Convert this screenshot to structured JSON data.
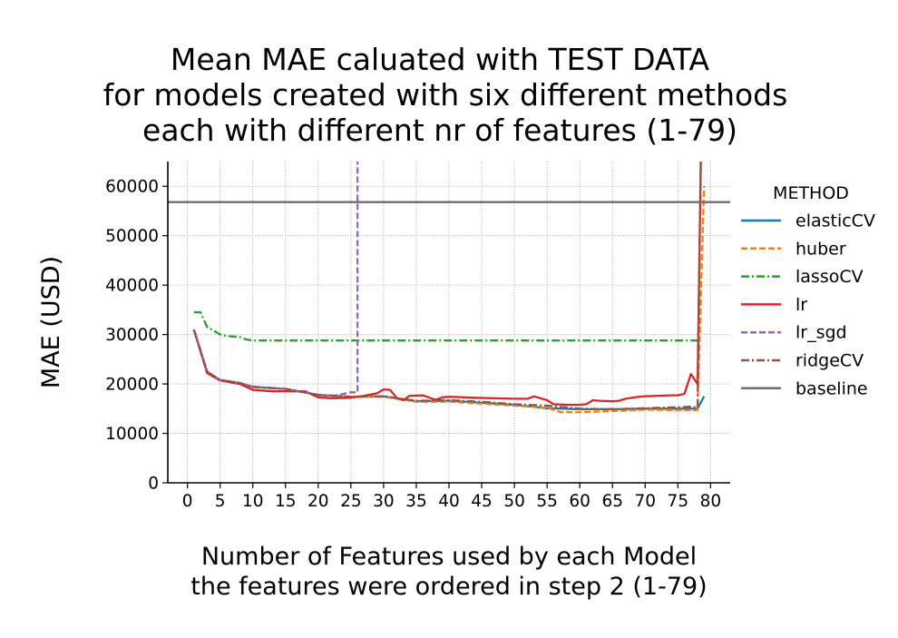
{
  "chart_data": {
    "type": "line",
    "title": [
      "Mean MAE caluated with TEST DATA",
      "for models created with six different methods",
      "each with different nr of features (1-79)"
    ],
    "xlabel": [
      "Number of Features used by each Model",
      "the features were ordered in step 2 (1-79)"
    ],
    "ylabel": "MAE (USD)",
    "xlim": [
      -3,
      83
    ],
    "ylim": [
      0,
      65000
    ],
    "xticks": [
      0,
      5,
      10,
      15,
      20,
      25,
      30,
      35,
      40,
      45,
      50,
      55,
      60,
      65,
      70,
      75,
      80
    ],
    "yticks": [
      0,
      10000,
      20000,
      30000,
      40000,
      50000,
      60000
    ],
    "grid": true,
    "legend_title": "METHOD",
    "legend_position": "outside-right",
    "series": [
      {
        "name": "elasticCV",
        "color": "#1f77b4",
        "dash": "solid",
        "x": [
          1,
          3,
          5,
          8,
          10,
          15,
          20,
          25,
          30,
          35,
          40,
          45,
          50,
          55,
          60,
          65,
          70,
          75,
          78,
          79
        ],
        "y": [
          31000,
          22500,
          20800,
          20200,
          19400,
          19000,
          17800,
          17400,
          17500,
          16500,
          16600,
          16200,
          15800,
          15100,
          14900,
          14900,
          15000,
          15000,
          15000,
          17500
        ]
      },
      {
        "name": "huber",
        "color": "#ff7f0e",
        "dash": "dashed",
        "x": [
          1,
          3,
          5,
          8,
          10,
          15,
          20,
          25,
          30,
          35,
          40,
          45,
          50,
          55,
          57,
          60,
          65,
          70,
          75,
          77,
          78,
          79
        ],
        "y": [
          31000,
          22500,
          20800,
          20200,
          19400,
          19000,
          17800,
          17400,
          17400,
          16400,
          16400,
          16000,
          15600,
          15200,
          14300,
          14300,
          14500,
          14800,
          14700,
          14700,
          14700,
          60000
        ]
      },
      {
        "name": "lassoCV",
        "color": "#2ca02c",
        "dash": "dashdot",
        "x": [
          1,
          2,
          3,
          4,
          5,
          6,
          7,
          8,
          9,
          10,
          20,
          30,
          40,
          50,
          60,
          70,
          77,
          78
        ],
        "y": [
          34500,
          34500,
          31500,
          30800,
          30000,
          29700,
          29600,
          29500,
          29000,
          28800,
          28800,
          28800,
          28800,
          28800,
          28800,
          28800,
          28800,
          28800
        ]
      },
      {
        "name": "lr",
        "color": "#d62728",
        "dash": "solid",
        "x": [
          1,
          3,
          5,
          8,
          10,
          13,
          18,
          20,
          22,
          25,
          27,
          29,
          30,
          31,
          32,
          33,
          34,
          36,
          37,
          38,
          39,
          40,
          42,
          44,
          47,
          50,
          52,
          53,
          54,
          55,
          56,
          58,
          60,
          61,
          62,
          63,
          65,
          66,
          67,
          68,
          69,
          70,
          72,
          74,
          75,
          76,
          77,
          78,
          78.5
        ],
        "y": [
          30900,
          22200,
          20700,
          20000,
          18800,
          18500,
          18500,
          17300,
          17100,
          17200,
          17600,
          18100,
          18900,
          18800,
          17200,
          16700,
          17600,
          17700,
          17200,
          16800,
          17300,
          17400,
          17300,
          17200,
          17100,
          17000,
          17000,
          17500,
          17100,
          16700,
          15900,
          15800,
          15800,
          15900,
          16700,
          16600,
          16500,
          16600,
          17000,
          17200,
          17400,
          17500,
          17600,
          17700,
          17700,
          18000,
          22000,
          20000,
          65000
        ]
      },
      {
        "name": "lr_sgd",
        "color": "#9467bd",
        "dash": "dashed",
        "x": [
          1,
          3,
          5,
          8,
          10,
          15,
          20,
          22,
          25,
          26,
          26.01
        ],
        "y": [
          31000,
          22500,
          20800,
          20200,
          19400,
          19000,
          17800,
          17500,
          18300,
          18300,
          65000
        ]
      },
      {
        "name": "ridgeCV",
        "color": "#8c564b",
        "dash": "dashdot",
        "x": [
          1,
          3,
          5,
          8,
          10,
          15,
          20,
          25,
          30,
          35,
          40,
          45,
          50,
          55,
          60,
          65,
          70,
          75,
          77,
          78,
          78.5
        ],
        "y": [
          31000,
          22500,
          20800,
          20200,
          19400,
          19000,
          17800,
          17400,
          17500,
          16600,
          16700,
          16400,
          15900,
          15600,
          15000,
          14900,
          15100,
          15300,
          15400,
          15200,
          65000
        ]
      },
      {
        "name": "baseline",
        "color": "#6d6d6d",
        "dash": "solid",
        "x": [
          -3,
          83
        ],
        "y": [
          56800,
          56800
        ]
      }
    ]
  }
}
